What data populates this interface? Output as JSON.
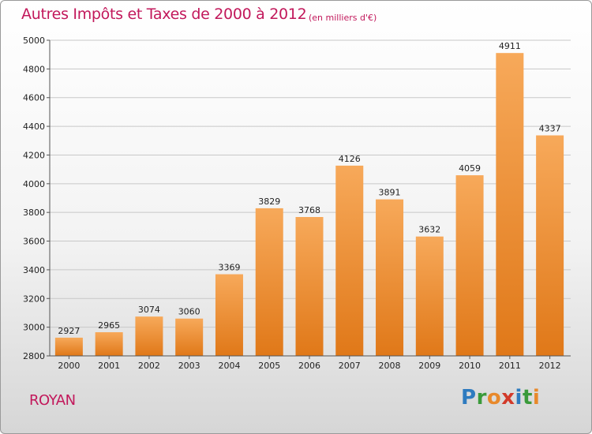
{
  "title": "Autres Impôts et Taxes de 2000 à 2012",
  "subtitle": "(en milliers d'€)",
  "city": "ROYAN",
  "logo": {
    "letters": [
      "P",
      "r",
      "o",
      "x",
      "i",
      "t",
      "i"
    ],
    "colors": [
      "#2e7bbf",
      "#3a9a3a",
      "#e8892b",
      "#d23a2a",
      "#2e7bbf",
      "#3a9a3a",
      "#e8892b"
    ]
  },
  "colors": {
    "bar_top": "#f7a95a",
    "bar_bottom": "#e07818",
    "title": "#c2185b"
  },
  "chart_data": {
    "type": "bar",
    "title": "Autres Impôts et Taxes de 2000 à 2012",
    "subtitle": "(en milliers d'€)",
    "categories": [
      "2000",
      "2001",
      "2002",
      "2003",
      "2004",
      "2005",
      "2006",
      "2007",
      "2008",
      "2009",
      "2010",
      "2011",
      "2012"
    ],
    "values": [
      2927,
      2965,
      3074,
      3060,
      3369,
      3829,
      3768,
      4126,
      3891,
      3632,
      4059,
      4911,
      4337
    ],
    "ylim": [
      2800,
      5000
    ],
    "yticks": [
      2800,
      3000,
      3200,
      3400,
      3600,
      3800,
      4000,
      4200,
      4400,
      4600,
      4800,
      5000
    ],
    "xlabel": "",
    "ylabel": "",
    "grid": true
  }
}
